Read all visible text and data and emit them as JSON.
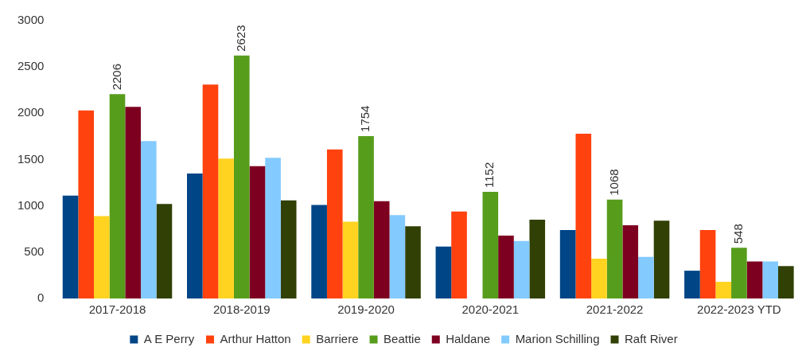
{
  "chart_data": {
    "type": "bar",
    "categories": [
      "2017-2018",
      "2018-2019",
      "2019-2020",
      "2020-2021",
      "2021-2022",
      "2022-2023 YTD"
    ],
    "series": [
      {
        "name": "A E Perry",
        "color": "#004586",
        "values": [
          1110,
          1350,
          1010,
          560,
          740,
          300
        ]
      },
      {
        "name": "Arthur Hatton",
        "color": "#ff420e",
        "values": [
          2030,
          2310,
          1610,
          940,
          1780,
          740
        ]
      },
      {
        "name": "Barriere",
        "color": "#ffd320",
        "values": [
          890,
          1510,
          830,
          null,
          430,
          180
        ]
      },
      {
        "name": "Beattie",
        "color": "#579d1c",
        "values": [
          2206,
          2623,
          1754,
          1152,
          1068,
          548
        ],
        "value_labels": [
          "2206",
          "2623",
          "1754",
          "1152",
          "1068",
          "548"
        ]
      },
      {
        "name": "Haldane",
        "color": "#7e0021",
        "values": [
          2070,
          1430,
          1050,
          680,
          790,
          400
        ]
      },
      {
        "name": "Marion Schilling",
        "color": "#83caff",
        "values": [
          1700,
          1520,
          900,
          620,
          450,
          400
        ]
      },
      {
        "name": "Raft River",
        "color": "#314004",
        "values": [
          1020,
          1060,
          780,
          850,
          840,
          350
        ]
      }
    ],
    "ylim": [
      0,
      3000
    ],
    "yticks": [
      0,
      500,
      1000,
      1500,
      2000,
      2500,
      3000
    ],
    "grid": false,
    "legend": "bottom"
  }
}
